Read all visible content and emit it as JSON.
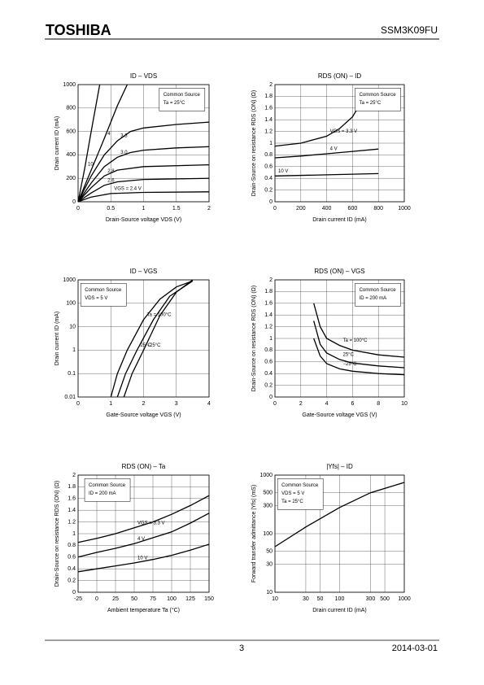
{
  "header": {
    "logo": "TOSHIBA",
    "part": "SSM3K09FU"
  },
  "footer": {
    "page": "3",
    "date": "2014-03-01"
  },
  "chart_data": [
    {
      "type": "line",
      "title": "ID – VDS",
      "xlabel": "Drain-Source voltage VDS (V)",
      "ylabel": "Drain current ID (mA)",
      "annotations": [
        "Common Source",
        "Ta = 25°C"
      ],
      "xlim": [
        0,
        2
      ],
      "xticks": [
        0,
        0.5,
        1,
        1.5,
        2
      ],
      "ylim": [
        0,
        1000
      ],
      "yticks": [
        0,
        200,
        400,
        600,
        800,
        1000
      ],
      "grid": true,
      "series": [
        {
          "name": "10",
          "color": "#000000",
          "x": [
            0,
            0.1,
            0.2,
            0.33
          ],
          "values": [
            0,
            280,
            600,
            1000
          ]
        },
        {
          "name": "4",
          "color": "#000000",
          "x": [
            0,
            0.2,
            0.4,
            0.6,
            0.75
          ],
          "values": [
            0,
            270,
            540,
            820,
            1000
          ]
        },
        {
          "name": "3.3",
          "color": "#000000",
          "x": [
            0,
            0.2,
            0.4,
            0.6,
            0.8,
            1,
            1.5,
            2
          ],
          "values": [
            0,
            220,
            400,
            520,
            600,
            630,
            660,
            680
          ]
        },
        {
          "name": "3.0",
          "color": "#000000",
          "x": [
            0,
            0.2,
            0.4,
            0.6,
            0.8,
            1,
            1.5,
            2
          ],
          "values": [
            0,
            160,
            300,
            380,
            420,
            440,
            460,
            470
          ]
        },
        {
          "name": "2.8",
          "color": "#000000",
          "x": [
            0,
            0.2,
            0.4,
            0.6,
            1,
            2
          ],
          "values": [
            0,
            120,
            220,
            270,
            300,
            315
          ]
        },
        {
          "name": "2.6",
          "color": "#000000",
          "x": [
            0,
            0.2,
            0.4,
            0.6,
            1,
            2
          ],
          "values": [
            0,
            75,
            140,
            170,
            190,
            200
          ]
        },
        {
          "name": "VGS = 2.4 V",
          "color": "#000000",
          "x": [
            0,
            0.2,
            0.5,
            1,
            2
          ],
          "values": [
            0,
            40,
            70,
            80,
            85
          ]
        }
      ]
    },
    {
      "type": "line",
      "title": "RDS (ON) – ID",
      "xlabel": "Drain current ID (mA)",
      "ylabel": "Drain-Source on resistance RDS (ON) (Ω)",
      "annotations": [
        "Common Source",
        "Ta = 25°C"
      ],
      "xlim": [
        0,
        1000
      ],
      "xticks": [
        0,
        200,
        400,
        600,
        800,
        1000
      ],
      "ylim": [
        0,
        2
      ],
      "yticks": [
        0,
        0.2,
        0.4,
        0.6,
        0.8,
        1,
        1.2,
        1.4,
        1.6,
        1.8,
        2
      ],
      "grid": true,
      "series": [
        {
          "name": "VGS = 3.3 V",
          "color": "#000000",
          "x": [
            0,
            200,
            400,
            500,
            600,
            640
          ],
          "values": [
            0.95,
            1.0,
            1.12,
            1.25,
            1.45,
            1.6
          ]
        },
        {
          "name": "4 V",
          "color": "#000000",
          "x": [
            0,
            200,
            400,
            600,
            800
          ],
          "values": [
            0.75,
            0.78,
            0.82,
            0.86,
            0.9
          ]
        },
        {
          "name": "10 V",
          "color": "#000000",
          "x": [
            0,
            400,
            800
          ],
          "values": [
            0.44,
            0.46,
            0.48
          ]
        }
      ]
    },
    {
      "type": "line",
      "title": "ID – VGS",
      "xlabel": "Gate-Source voltage VGS (V)",
      "ylabel": "Drain current ID (mA)",
      "annotations": [
        "Common Source",
        "VDS = 5 V"
      ],
      "yscale": "log",
      "xlim": [
        0,
        4
      ],
      "xticks": [
        0,
        1,
        2,
        3,
        4
      ],
      "ylim": [
        0.01,
        1000
      ],
      "yticks": [
        0.01,
        0.1,
        1,
        10,
        100,
        1000
      ],
      "grid": true,
      "series": [
        {
          "name": "Ta = 100°C",
          "color": "#000000",
          "x": [
            1,
            1.2,
            1.5,
            2,
            2.5,
            3,
            3.5
          ],
          "values": [
            0.01,
            0.1,
            1,
            20,
            150,
            500,
            900
          ]
        },
        {
          "name": "25°C",
          "color": "#000000",
          "x": [
            1.2,
            1.45,
            1.8,
            2.3,
            2.8,
            3.5
          ],
          "values": [
            0.01,
            0.1,
            1,
            20,
            200,
            900
          ]
        },
        {
          "name": "−25°C",
          "color": "#000000",
          "x": [
            1.4,
            1.65,
            2,
            2.5,
            3,
            3.5
          ],
          "values": [
            0.01,
            0.1,
            1,
            30,
            300,
            1000
          ]
        }
      ]
    },
    {
      "type": "line",
      "title": "RDS (ON) – VGS",
      "xlabel": "Gate-Source voltage VGS (V)",
      "ylabel": "Drain-Source on resistance RDS (ON) (Ω)",
      "annotations": [
        "Common Source",
        "ID = 200 mA"
      ],
      "xlim": [
        0,
        10
      ],
      "xticks": [
        0,
        2,
        4,
        6,
        8,
        10
      ],
      "ylim": [
        0,
        2
      ],
      "yticks": [
        0,
        0.2,
        0.4,
        0.6,
        0.8,
        1,
        1.2,
        1.4,
        1.6,
        1.8,
        2
      ],
      "grid": true,
      "series": [
        {
          "name": "Ta = 100°C",
          "color": "#000000",
          "x": [
            3,
            3.5,
            4,
            5,
            6,
            8,
            10
          ],
          "values": [
            1.6,
            1.2,
            1.0,
            0.88,
            0.8,
            0.72,
            0.68
          ]
        },
        {
          "name": "25°C",
          "color": "#000000",
          "x": [
            3,
            3.5,
            4,
            5,
            6,
            8,
            10
          ],
          "values": [
            1.3,
            0.9,
            0.75,
            0.64,
            0.58,
            0.53,
            0.5
          ]
        },
        {
          "name": "−25°C",
          "color": "#000000",
          "x": [
            3,
            3.5,
            4,
            5,
            6,
            8,
            10
          ],
          "values": [
            1.0,
            0.7,
            0.57,
            0.48,
            0.44,
            0.4,
            0.38
          ]
        }
      ]
    },
    {
      "type": "line",
      "title": "RDS (ON) – Ta",
      "xlabel": "Ambient temperature Ta (°C)",
      "ylabel": "Drain-Source on resistance RDS (ON) (Ω)",
      "annotations": [
        "Common Source",
        "ID = 200 mA"
      ],
      "xlim": [
        -25,
        150
      ],
      "xticks": [
        -25,
        0,
        25,
        50,
        75,
        100,
        125,
        150
      ],
      "ylim": [
        0,
        2
      ],
      "yticks": [
        0,
        0.2,
        0.4,
        0.6,
        0.8,
        1,
        1.2,
        1.4,
        1.6,
        1.8,
        2
      ],
      "grid": true,
      "series": [
        {
          "name": "VGS = 3.3 V",
          "color": "#000000",
          "x": [
            -25,
            0,
            25,
            50,
            75,
            100,
            125,
            150
          ],
          "values": [
            0.85,
            0.92,
            1.0,
            1.1,
            1.2,
            1.33,
            1.48,
            1.65
          ]
        },
        {
          "name": "4 V",
          "color": "#000000",
          "x": [
            -25,
            0,
            25,
            50,
            75,
            100,
            125,
            150
          ],
          "values": [
            0.6,
            0.68,
            0.75,
            0.83,
            0.93,
            1.03,
            1.18,
            1.35
          ]
        },
        {
          "name": "10 V",
          "color": "#000000",
          "x": [
            -25,
            0,
            25,
            50,
            75,
            100,
            125,
            150
          ],
          "values": [
            0.35,
            0.4,
            0.45,
            0.5,
            0.56,
            0.63,
            0.72,
            0.82
          ]
        }
      ]
    },
    {
      "type": "line",
      "title": "|Yfs| – ID",
      "xlabel": "Drain current ID (mA)",
      "ylabel": "Forward transfer admittance |Yfs| (mS)",
      "annotations": [
        "Common Source",
        "VDS = 5 V",
        "Ta = 25°C"
      ],
      "xscale": "log",
      "yscale": "log",
      "xlim": [
        10,
        1000
      ],
      "xticks": [
        10,
        30,
        50,
        100,
        300,
        500,
        1000
      ],
      "ylim": [
        10,
        1000
      ],
      "yticks": [
        10,
        30,
        50,
        100,
        300,
        500,
        1000
      ],
      "grid": true,
      "series": [
        {
          "color": "#000000",
          "x": [
            10,
            30,
            100,
            300,
            1000
          ],
          "values": [
            60,
            130,
            280,
            500,
            750
          ]
        }
      ]
    }
  ]
}
